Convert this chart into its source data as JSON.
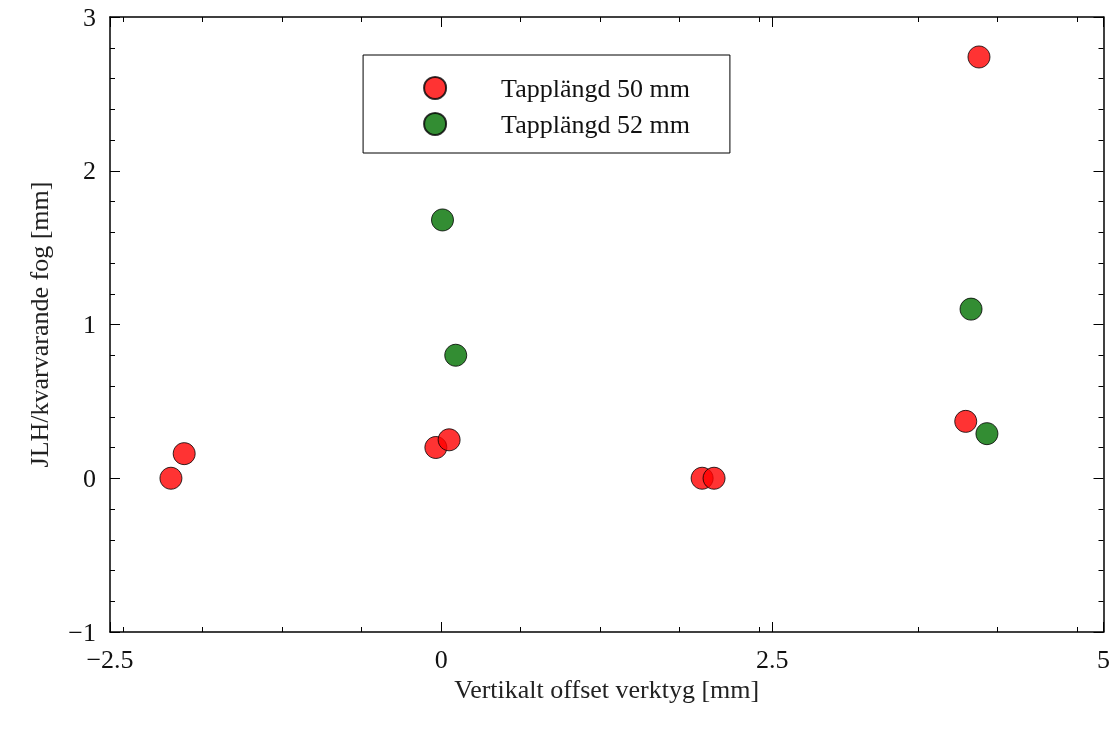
{
  "chart_data": {
    "type": "scatter",
    "xlabel": "Vertikalt offset verktyg [mm]",
    "ylabel": "JLH/kvarvarande fog [mm]",
    "xlim": [
      -2.5,
      5
    ],
    "xticks": [
      {
        "value": -2.5,
        "label": "−2.5"
      },
      0,
      2.5,
      5
    ],
    "ylim": [
      -1,
      3
    ],
    "yticks": [
      {
        "value": -1,
        "label": "−1"
      },
      0,
      1,
      2,
      3
    ],
    "grid": false,
    "legend": "top",
    "marker": "circle",
    "series": [
      {
        "name": "Tapplängd 50 mm",
        "color": "#ff0000",
        "x": [
          -2.04,
          -1.94,
          -0.04,
          0.06,
          1.97,
          2.06,
          3.96,
          4.06
        ],
        "values": [
          0,
          0.16,
          0.2,
          0.25,
          0,
          0,
          0.37,
          2.74
        ]
      },
      {
        "name": "Tapplängd 52 mm",
        "color": "#007000",
        "x": [
          0.01,
          0.11,
          4.0,
          4.12
        ],
        "values": [
          1.68,
          0.8,
          1.1,
          0.29
        ]
      }
    ]
  }
}
